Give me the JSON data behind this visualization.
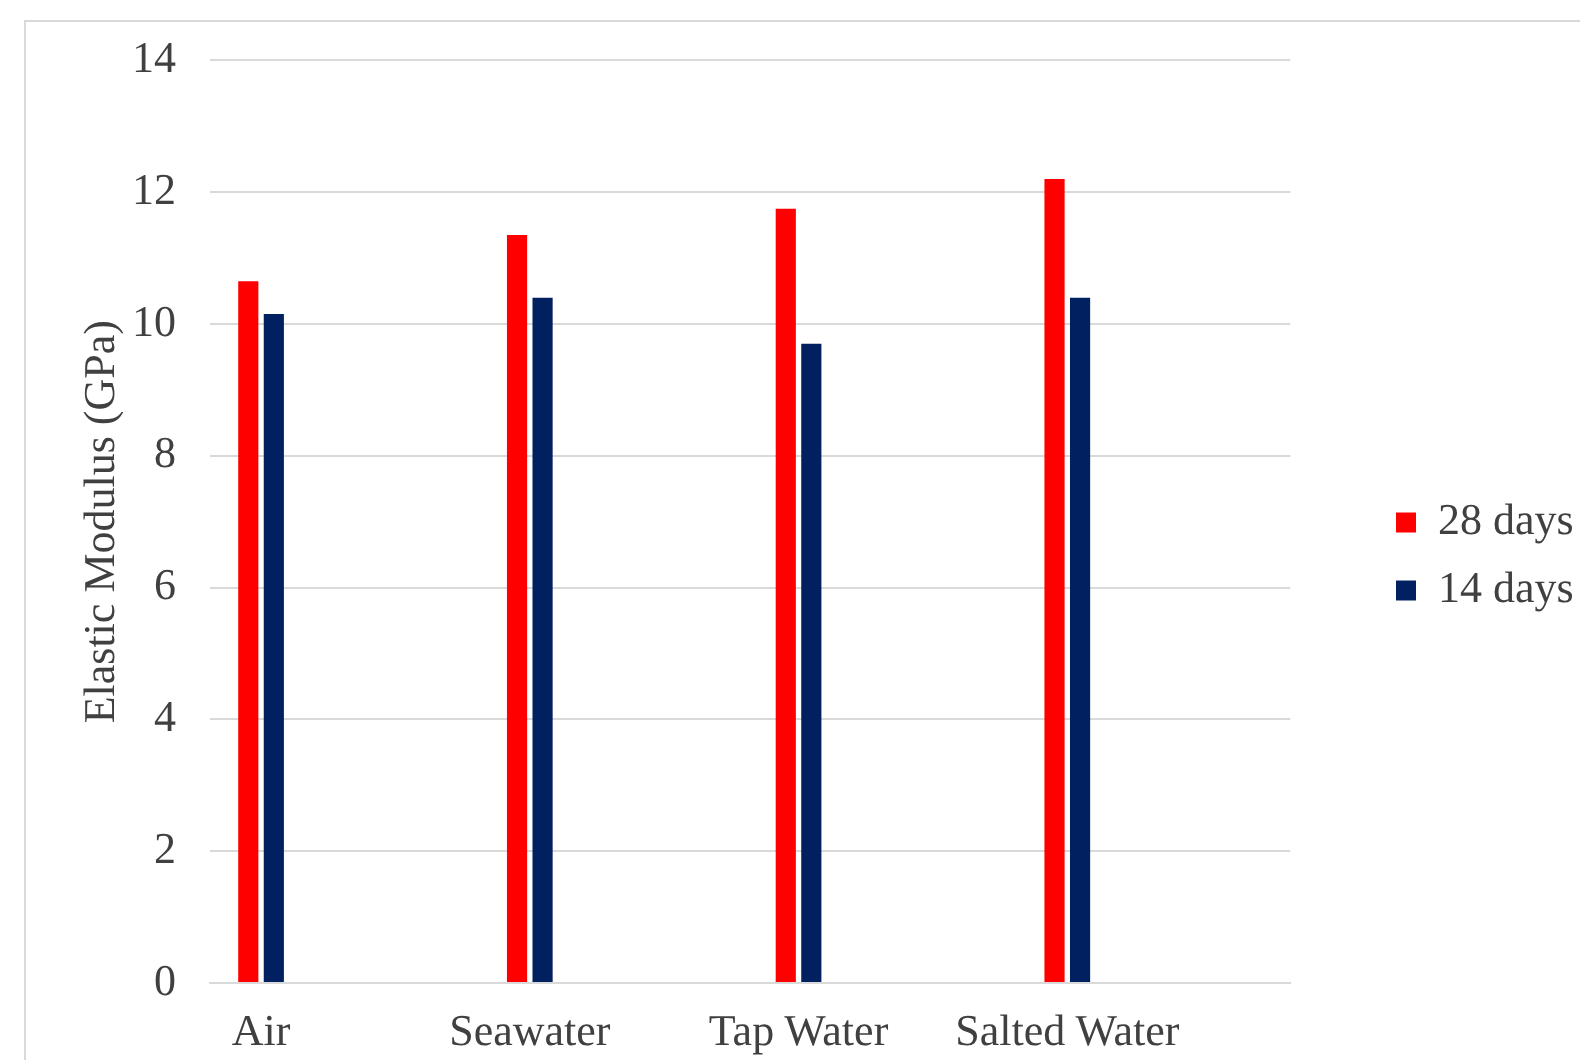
{
  "chart_data": {
    "type": "bar",
    "ylabel": "Elastic Modulus (GPa)",
    "categories": [
      "Air",
      "Seawater",
      "Tap Water",
      "Salted Water"
    ],
    "series": [
      {
        "name": "28 days",
        "color": "#ff0000",
        "values": [
          10.65,
          11.35,
          11.75,
          12.2
        ]
      },
      {
        "name": "14 days",
        "color": "#002060",
        "values": [
          10.15,
          10.4,
          9.7,
          10.4
        ]
      }
    ],
    "ylim": [
      0,
      14
    ],
    "yticks": [
      0,
      2,
      4,
      6,
      8,
      10,
      12,
      14
    ],
    "grid": "y",
    "legend": "right"
  }
}
